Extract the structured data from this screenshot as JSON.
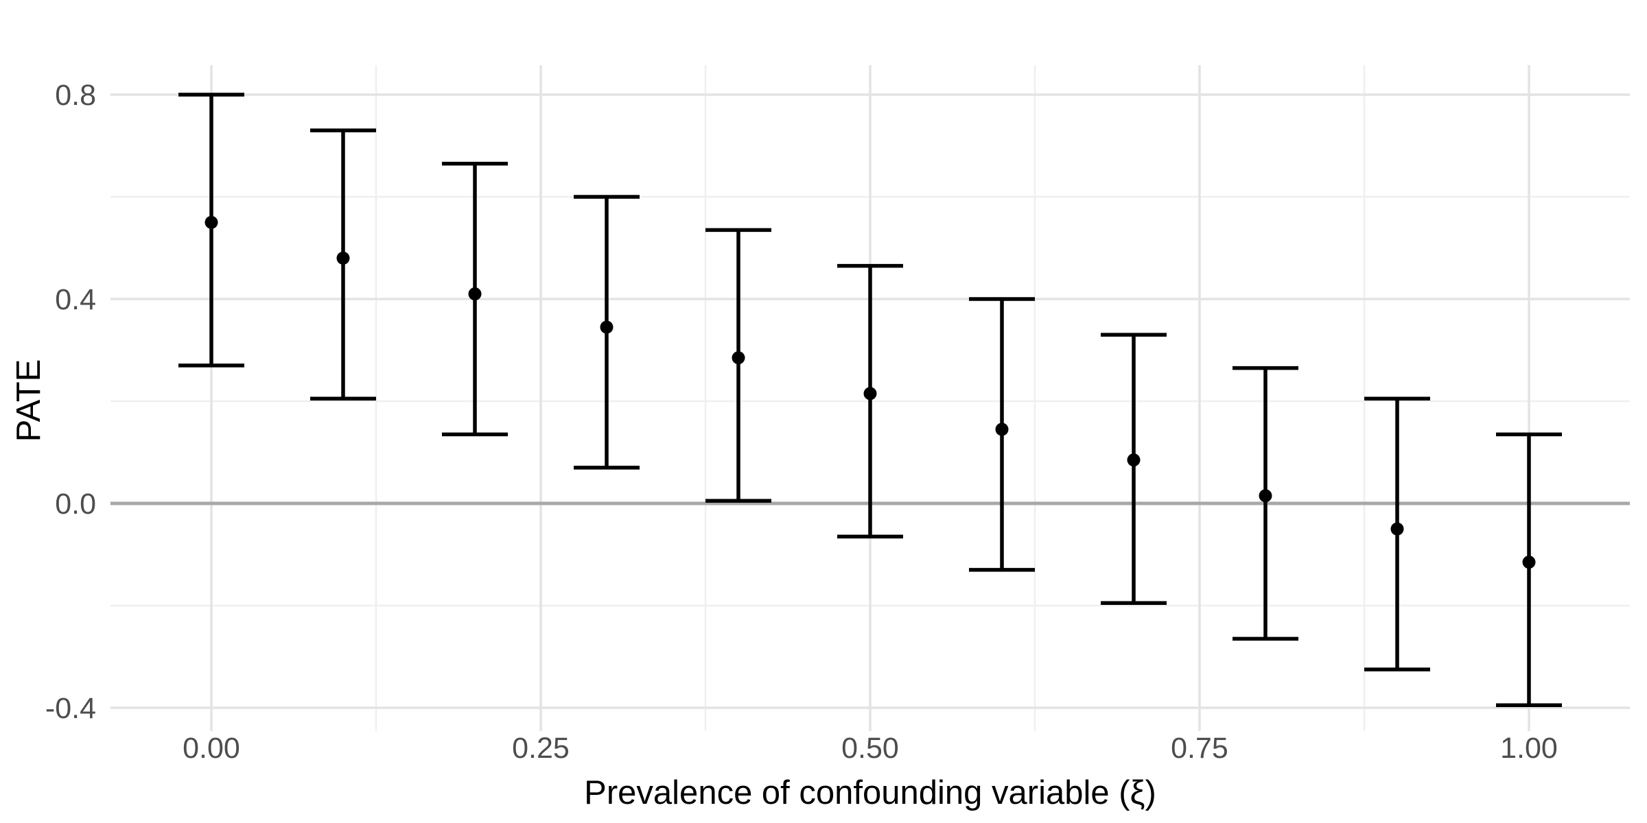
{
  "figure": {
    "background": "#ffffff",
    "x_axis": {
      "title": "Prevalence of confounding variable (ξ)"
    },
    "y_axis": {
      "title": "PATE"
    }
  },
  "chart_data": {
    "type": "pointrange",
    "title": "",
    "xlabel": "Prevalence of confounding variable (ξ)",
    "ylabel": "PATE",
    "x": [
      0.0,
      0.1,
      0.2,
      0.3,
      0.4,
      0.5,
      0.6,
      0.7,
      0.8,
      0.9,
      1.0
    ],
    "y": [
      0.55,
      0.48,
      0.41,
      0.345,
      0.285,
      0.215,
      0.145,
      0.085,
      0.015,
      -0.05,
      -0.115
    ],
    "ymin": [
      0.27,
      0.205,
      0.135,
      0.07,
      0.005,
      -0.065,
      -0.13,
      -0.195,
      -0.265,
      -0.325,
      -0.395
    ],
    "ymax": [
      0.8,
      0.73,
      0.665,
      0.6,
      0.535,
      0.465,
      0.4,
      0.33,
      0.265,
      0.205,
      0.135
    ],
    "reference_line_y": 0,
    "x_ticks": {
      "values": [
        0.0,
        0.25,
        0.5,
        0.75,
        1.0
      ],
      "labels": [
        "0.00",
        "0.25",
        "0.50",
        "0.75",
        "1.00"
      ],
      "minor": [
        0.125,
        0.375,
        0.625,
        0.875
      ]
    },
    "y_ticks": {
      "values": [
        0.8,
        0.4,
        0.0,
        -0.4
      ],
      "labels": [
        "0.8",
        "0.4",
        "0.0",
        "-0.4"
      ],
      "minor": [
        0.6,
        0.2,
        -0.2
      ]
    },
    "xlim": [
      -0.077,
      1.077
    ],
    "ylim": [
      -0.445,
      0.858
    ],
    "grid": "on",
    "legend": "none",
    "colors": {
      "point": "#000000",
      "major_grid": "#e3e3e3",
      "minor_grid": "#efefef",
      "zero_line": "#a8a8a8",
      "tick_text": "#4d4d4d",
      "title_text": "#000000"
    }
  }
}
